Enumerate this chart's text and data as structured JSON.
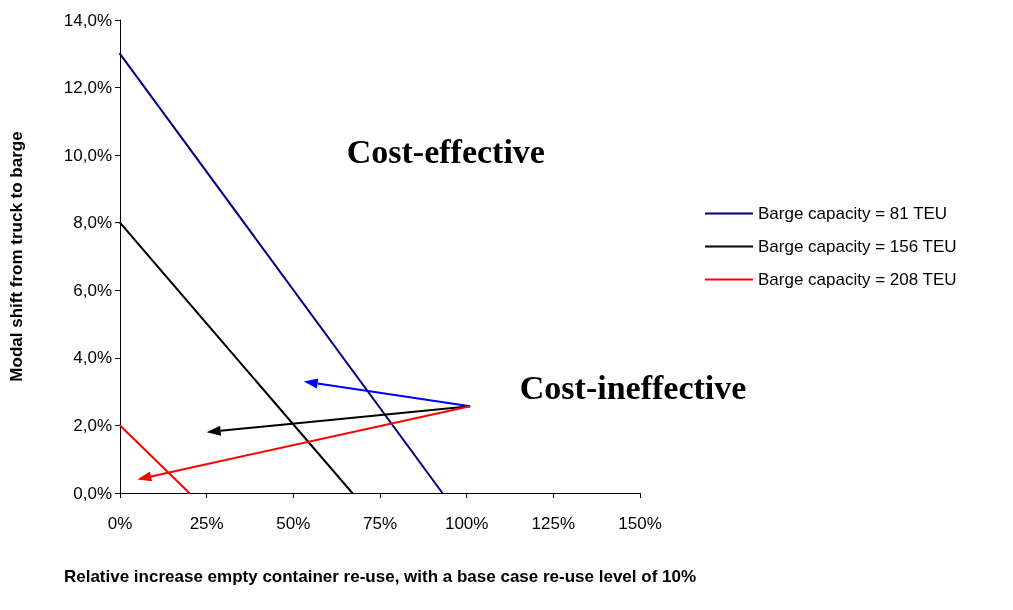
{
  "chart_data": {
    "type": "line",
    "xlabel": "Relative increase empty container re-use, with a base case re-use level of 10%",
    "ylabel": "Modal shift from truck to barge",
    "series": [
      {
        "name": "Barge capacity = 81 TEU",
        "color": "#000080",
        "x": [
          0,
          93
        ],
        "values": [
          13,
          0
        ]
      },
      {
        "name": "Barge capacity = 156 TEU",
        "color": "#000000",
        "x": [
          0,
          67
        ],
        "values": [
          8,
          0
        ]
      },
      {
        "name": "Barge capacity = 208 TEU",
        "color": "#ff0000",
        "x": [
          0,
          20
        ],
        "values": [
          2,
          0
        ]
      }
    ],
    "xlim": [
      0,
      150
    ],
    "xticks": [
      {
        "value": 0,
        "label": "0%"
      },
      {
        "value": 25,
        "label": "25%"
      },
      {
        "value": 50,
        "label": "50%"
      },
      {
        "value": 75,
        "label": "75%"
      },
      {
        "value": 100,
        "label": "100%"
      },
      {
        "value": 125,
        "label": "125%"
      },
      {
        "value": 150,
        "label": "150%"
      }
    ],
    "ylim": [
      0,
      14
    ],
    "yticks": [
      {
        "value": 0,
        "label": "0,0%"
      },
      {
        "value": 2,
        "label": "2,0%"
      },
      {
        "value": 4,
        "label": "4,0%"
      },
      {
        "value": 6,
        "label": "6,0%"
      },
      {
        "value": 8,
        "label": "8,0%"
      },
      {
        "value": 10,
        "label": "10,0%"
      },
      {
        "value": 12,
        "label": "12,0%"
      },
      {
        "value": 14,
        "label": "14,0%"
      }
    ],
    "annotations": [
      "Cost-effective",
      "Cost-ineffective"
    ],
    "grid": false,
    "legend": "right",
    "marker": "none",
    "line_style": "solid"
  }
}
